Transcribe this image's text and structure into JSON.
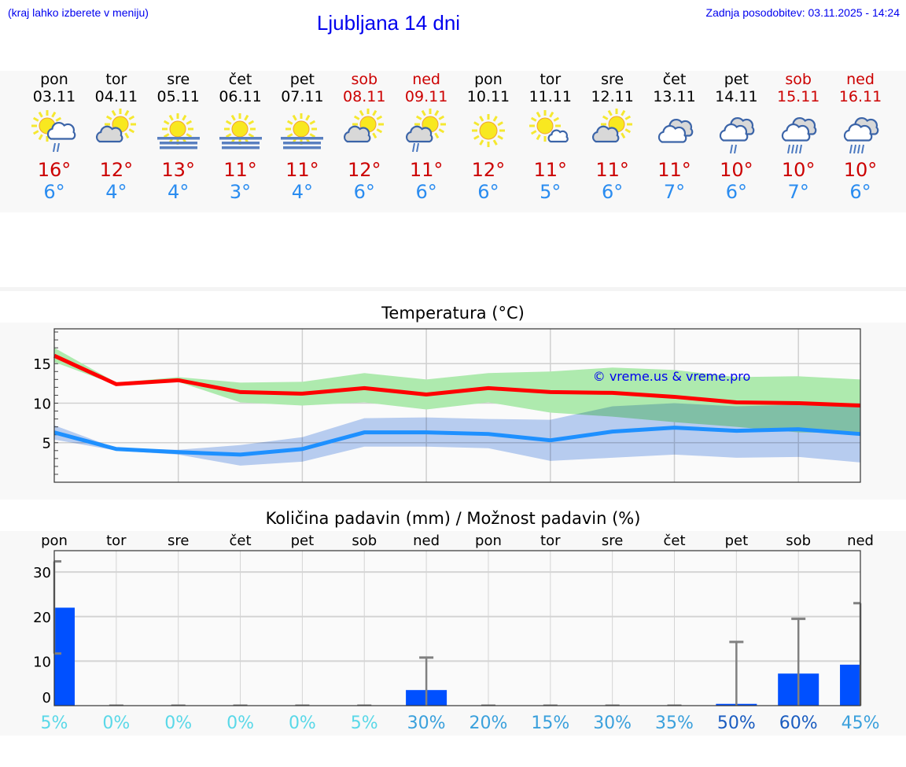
{
  "header": {
    "hint": "(kraj lahko izberete v meniju)",
    "title": "Ljubljana 14 dni",
    "updated": "Zadnja posodobitev: 03.11.2025 - 14:24"
  },
  "days": [
    {
      "name": "pon",
      "date": "03.11",
      "weekend": false,
      "icon": "sun-cloud-rain",
      "max": "16°",
      "min": "6°"
    },
    {
      "name": "tor",
      "date": "04.11",
      "weekend": false,
      "icon": "sun-cloud",
      "max": "12°",
      "min": "4°"
    },
    {
      "name": "sre",
      "date": "05.11",
      "weekend": false,
      "icon": "sun-fog",
      "max": "13°",
      "min": "4°"
    },
    {
      "name": "čet",
      "date": "06.11",
      "weekend": false,
      "icon": "sun-fog",
      "max": "11°",
      "min": "3°"
    },
    {
      "name": "pet",
      "date": "07.11",
      "weekend": false,
      "icon": "sun-fog",
      "max": "11°",
      "min": "4°"
    },
    {
      "name": "sob",
      "date": "08.11",
      "weekend": true,
      "icon": "sun-cloud",
      "max": "12°",
      "min": "6°"
    },
    {
      "name": "ned",
      "date": "09.11",
      "weekend": true,
      "icon": "sun-cloud-rain-small",
      "max": "11°",
      "min": "6°"
    },
    {
      "name": "pon",
      "date": "10.11",
      "weekend": false,
      "icon": "sun",
      "max": "12°",
      "min": "6°"
    },
    {
      "name": "tor",
      "date": "11.11",
      "weekend": false,
      "icon": "sun-small-cloud",
      "max": "11°",
      "min": "5°"
    },
    {
      "name": "sre",
      "date": "12.11",
      "weekend": false,
      "icon": "sun-cloud",
      "max": "11°",
      "min": "6°"
    },
    {
      "name": "čet",
      "date": "13.11",
      "weekend": false,
      "icon": "cloudy",
      "max": "11°",
      "min": "7°"
    },
    {
      "name": "pet",
      "date": "14.11",
      "weekend": false,
      "icon": "cloud-rain",
      "max": "10°",
      "min": "6°"
    },
    {
      "name": "sob",
      "date": "15.11",
      "weekend": true,
      "icon": "cloud-heavy-rain",
      "max": "10°",
      "min": "7°"
    },
    {
      "name": "ned",
      "date": "16.11",
      "weekend": true,
      "icon": "cloud-heavy-rain",
      "max": "10°",
      "min": "6°"
    }
  ],
  "colors": {
    "max": "#ff0000",
    "min": "#1e90ff",
    "max_band": "#aeeaae",
    "min_band": "#afc8f2",
    "bar": "#0050ff",
    "whisker": "#808080",
    "weekend": "#cc0000"
  },
  "chart_data": [
    {
      "type": "line",
      "title": "Temperatura (°C)",
      "watermark": "© vreme.us & vreme.pro",
      "categories": [
        "03.11",
        "04.11",
        "05.11",
        "06.11",
        "07.11",
        "08.11",
        "09.11",
        "10.11",
        "11.11",
        "12.11",
        "13.11",
        "14.11",
        "15.11",
        "16.11"
      ],
      "ylim": [
        0,
        19.4
      ],
      "yticks": [
        5,
        10,
        15
      ],
      "grid": true,
      "series": [
        {
          "values": [
            16.0,
            12.4,
            12.9,
            11.4,
            11.2,
            11.9,
            11.1,
            11.9,
            11.4,
            11.3,
            10.8,
            10.1,
            10.0,
            9.7
          ],
          "band_low": [
            15.2,
            12.3,
            12.7,
            10.1,
            9.7,
            10.1,
            9.2,
            10.1,
            8.8,
            8.3,
            7.6,
            7.0,
            6.3,
            6.2
          ],
          "band_high": [
            17.0,
            12.6,
            13.3,
            12.6,
            12.7,
            13.8,
            13.0,
            13.8,
            14.0,
            14.5,
            14.2,
            13.3,
            13.4,
            13.0
          ]
        },
        {
          "values": [
            6.3,
            4.2,
            3.8,
            3.5,
            4.2,
            6.3,
            6.3,
            6.1,
            5.3,
            6.4,
            6.9,
            6.5,
            6.7,
            6.1
          ],
          "band_low": [
            5.4,
            4.0,
            3.5,
            2.1,
            2.6,
            4.5,
            4.5,
            4.3,
            2.7,
            3.1,
            3.5,
            3.1,
            3.2,
            2.5
          ],
          "band_high": [
            7.2,
            4.3,
            4.1,
            4.7,
            5.7,
            8.1,
            8.2,
            8.0,
            7.9,
            9.6,
            10.0,
            9.6,
            9.8,
            10.0
          ]
        }
      ]
    },
    {
      "type": "bar",
      "title": "Količina padavin (mm) / Možnost padavin (%)",
      "categories": [
        "pon",
        "tor",
        "sre",
        "čet",
        "pet",
        "sob",
        "ned",
        "pon",
        "tor",
        "sre",
        "čet",
        "pet",
        "sob",
        "ned"
      ],
      "values": [
        22.0,
        0,
        0,
        0,
        0,
        0,
        3.5,
        0,
        0,
        0,
        0,
        0.4,
        7.2,
        9.2
      ],
      "error_low": [
        11.7,
        0,
        0,
        0,
        0,
        0,
        0,
        0,
        0,
        0,
        0,
        0,
        0,
        0
      ],
      "error_high": [
        32.4,
        0,
        0,
        0,
        0,
        0,
        10.8,
        0,
        0,
        0,
        0,
        14.3,
        19.5,
        23.0
      ],
      "ylim": [
        0,
        34.8
      ],
      "yticks": [
        0,
        10,
        20,
        30
      ],
      "grid": true,
      "probabilities": [
        {
          "label": "5%",
          "color": "#5ad8e8"
        },
        {
          "label": "0%",
          "color": "#5ad8e8"
        },
        {
          "label": "0%",
          "color": "#5ad8e8"
        },
        {
          "label": "0%",
          "color": "#5ad8e8"
        },
        {
          "label": "0%",
          "color": "#5ad8e8"
        },
        {
          "label": "5%",
          "color": "#5ad8e8"
        },
        {
          "label": "30%",
          "color": "#3aa0dc"
        },
        {
          "label": "20%",
          "color": "#3aa0dc"
        },
        {
          "label": "15%",
          "color": "#3aa0dc"
        },
        {
          "label": "30%",
          "color": "#3aa0dc"
        },
        {
          "label": "35%",
          "color": "#3aa0dc"
        },
        {
          "label": "50%",
          "color": "#1a5cc0"
        },
        {
          "label": "60%",
          "color": "#1a5cc0"
        },
        {
          "label": "45%",
          "color": "#3aa0dc"
        }
      ]
    }
  ]
}
